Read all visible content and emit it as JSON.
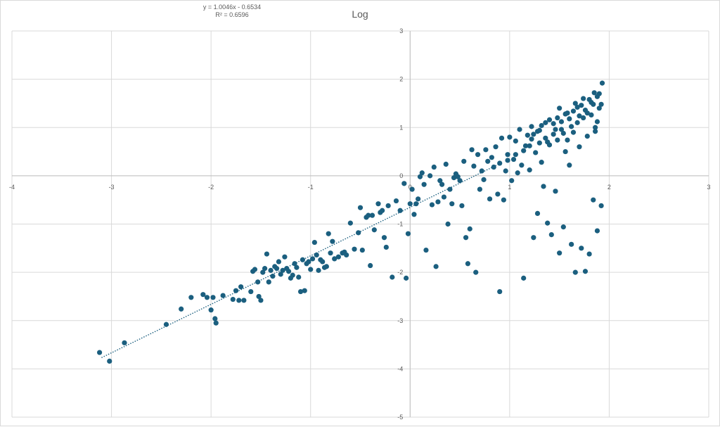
{
  "chart_data": {
    "type": "scatter",
    "title": "Log",
    "xlabel": "",
    "ylabel": "",
    "xlim": [
      -4,
      3
    ],
    "ylim": [
      -5,
      3
    ],
    "x_ticks": [
      -4,
      -3,
      -2,
      -1,
      0,
      1,
      2,
      3
    ],
    "y_ticks": [
      -5,
      -4,
      -3,
      -2,
      -1,
      0,
      1,
      2,
      3
    ],
    "x_tick_labels": [
      "-4",
      "-3",
      "-2",
      "-1",
      "0",
      "1",
      "2",
      "3"
    ],
    "y_tick_labels": [
      "-5",
      "-4",
      "-3",
      "-2",
      "-1",
      "0",
      "1",
      "2",
      "3"
    ],
    "grid": true,
    "marker_color": "#1b5f7f",
    "trendline": {
      "type": "linear",
      "slope": 1.0046,
      "intercept": -0.6534,
      "r_squared": 0.6596,
      "x_range": [
        -3.1,
        0.9
      ],
      "color": "#1b5f7f",
      "equation_label": "y = 1.0046x - 0.6534",
      "r2_label": "R² = 0.6596"
    },
    "points": [
      [
        -3.12,
        -3.66
      ],
      [
        -3.02,
        -3.84
      ],
      [
        -2.87,
        -3.46
      ],
      [
        -2.45,
        -3.08
      ],
      [
        -2.3,
        -2.76
      ],
      [
        -2.2,
        -2.52
      ],
      [
        -2.08,
        -2.46
      ],
      [
        -2.04,
        -2.52
      ],
      [
        -2.0,
        -2.78
      ],
      [
        -1.98,
        -2.52
      ],
      [
        -1.96,
        -2.96
      ],
      [
        -1.95,
        -3.05
      ],
      [
        -1.88,
        -2.48
      ],
      [
        -1.78,
        -2.56
      ],
      [
        -1.75,
        -2.38
      ],
      [
        -1.72,
        -2.58
      ],
      [
        -1.7,
        -2.3
      ],
      [
        -1.67,
        -2.58
      ],
      [
        -1.6,
        -2.4
      ],
      [
        -1.58,
        -1.98
      ],
      [
        -1.56,
        -1.94
      ],
      [
        -1.53,
        -2.2
      ],
      [
        -1.52,
        -2.5
      ],
      [
        -1.5,
        -2.58
      ],
      [
        -1.48,
        -2.0
      ],
      [
        -1.46,
        -1.92
      ],
      [
        -1.44,
        -1.62
      ],
      [
        -1.42,
        -2.2
      ],
      [
        -1.4,
        -1.96
      ],
      [
        -1.38,
        -2.08
      ],
      [
        -1.36,
        -1.88
      ],
      [
        -1.34,
        -1.92
      ],
      [
        -1.32,
        -1.78
      ],
      [
        -1.3,
        -2.04
      ],
      [
        -1.28,
        -1.96
      ],
      [
        -1.26,
        -1.68
      ],
      [
        -1.24,
        -1.92
      ],
      [
        -1.22,
        -1.98
      ],
      [
        -1.2,
        -2.12
      ],
      [
        -1.18,
        -2.06
      ],
      [
        -1.16,
        -1.82
      ],
      [
        -1.14,
        -1.9
      ],
      [
        -1.12,
        -2.1
      ],
      [
        -1.1,
        -2.4
      ],
      [
        -1.08,
        -1.74
      ],
      [
        -1.06,
        -2.38
      ],
      [
        -1.04,
        -1.82
      ],
      [
        -1.02,
        -1.78
      ],
      [
        -1.0,
        -1.94
      ],
      [
        -0.98,
        -1.72
      ],
      [
        -0.96,
        -1.38
      ],
      [
        -0.94,
        -1.64
      ],
      [
        -0.92,
        -1.96
      ],
      [
        -0.9,
        -1.74
      ],
      [
        -0.88,
        -1.78
      ],
      [
        -0.86,
        -1.9
      ],
      [
        -0.84,
        -1.88
      ],
      [
        -0.82,
        -1.2
      ],
      [
        -0.8,
        -1.6
      ],
      [
        -0.78,
        -1.36
      ],
      [
        -0.76,
        -1.72
      ],
      [
        -0.72,
        -1.68
      ],
      [
        -0.68,
        -1.6
      ],
      [
        -0.66,
        -1.58
      ],
      [
        -0.64,
        -1.64
      ],
      [
        -0.6,
        -0.98
      ],
      [
        -0.56,
        -1.52
      ],
      [
        -0.52,
        -1.18
      ],
      [
        -0.5,
        -0.66
      ],
      [
        -0.48,
        -1.54
      ],
      [
        -0.44,
        -0.86
      ],
      [
        -0.42,
        -0.82
      ],
      [
        -0.4,
        -1.86
      ],
      [
        -0.38,
        -0.82
      ],
      [
        -0.36,
        -1.12
      ],
      [
        -0.32,
        -0.58
      ],
      [
        -0.3,
        -0.76
      ],
      [
        -0.28,
        -0.72
      ],
      [
        -0.26,
        -1.28
      ],
      [
        -0.24,
        -1.48
      ],
      [
        -0.22,
        -0.62
      ],
      [
        -0.18,
        -2.1
      ],
      [
        -0.14,
        -0.52
      ],
      [
        -0.1,
        -0.72
      ],
      [
        -0.06,
        -0.16
      ],
      [
        -0.04,
        -2.12
      ],
      [
        -0.02,
        -1.2
      ],
      [
        0.0,
        -0.58
      ],
      [
        0.02,
        -0.28
      ],
      [
        0.04,
        -0.8
      ],
      [
        0.06,
        -0.58
      ],
      [
        0.08,
        -0.48
      ],
      [
        0.1,
        -0.02
      ],
      [
        0.12,
        0.06
      ],
      [
        0.14,
        -0.18
      ],
      [
        0.16,
        -1.54
      ],
      [
        0.2,
        0.0
      ],
      [
        0.22,
        -0.6
      ],
      [
        0.24,
        0.18
      ],
      [
        0.26,
        -1.88
      ],
      [
        0.28,
        -0.54
      ],
      [
        0.3,
        -0.1
      ],
      [
        0.32,
        -0.18
      ],
      [
        0.34,
        -0.44
      ],
      [
        0.36,
        0.24
      ],
      [
        0.38,
        -1.0
      ],
      [
        0.4,
        -0.28
      ],
      [
        0.42,
        -0.58
      ],
      [
        0.44,
        -0.04
      ],
      [
        0.46,
        0.04
      ],
      [
        0.48,
        -0.02
      ],
      [
        0.5,
        -0.1
      ],
      [
        0.52,
        -0.62
      ],
      [
        0.54,
        0.3
      ],
      [
        0.56,
        -1.28
      ],
      [
        0.58,
        -1.82
      ],
      [
        0.6,
        -1.1
      ],
      [
        0.62,
        0.54
      ],
      [
        0.64,
        0.2
      ],
      [
        0.66,
        -2.0
      ],
      [
        0.68,
        0.44
      ],
      [
        0.7,
        -0.28
      ],
      [
        0.72,
        0.1
      ],
      [
        0.74,
        -0.08
      ],
      [
        0.76,
        0.54
      ],
      [
        0.78,
        0.3
      ],
      [
        0.8,
        -0.48
      ],
      [
        0.82,
        0.38
      ],
      [
        0.84,
        0.18
      ],
      [
        0.86,
        0.6
      ],
      [
        0.88,
        -0.38
      ],
      [
        0.9,
        -2.4
      ],
      [
        0.92,
        0.78
      ],
      [
        0.94,
        -0.5
      ],
      [
        0.96,
        0.1
      ],
      [
        0.98,
        0.44
      ],
      [
        1.0,
        0.8
      ],
      [
        1.02,
        -0.1
      ],
      [
        1.04,
        0.34
      ],
      [
        1.06,
        0.72
      ],
      [
        1.08,
        0.06
      ],
      [
        1.1,
        0.96
      ],
      [
        1.12,
        0.22
      ],
      [
        1.14,
        -2.12
      ],
      [
        1.16,
        0.62
      ],
      [
        1.18,
        0.84
      ],
      [
        1.2,
        0.12
      ],
      [
        1.22,
        1.02
      ],
      [
        1.24,
        -1.28
      ],
      [
        1.26,
        0.48
      ],
      [
        1.28,
        -0.78
      ],
      [
        1.3,
        0.94
      ],
      [
        1.32,
        0.28
      ],
      [
        1.34,
        -0.22
      ],
      [
        1.36,
        1.1
      ],
      [
        1.38,
        -0.98
      ],
      [
        1.4,
        0.64
      ],
      [
        1.42,
        -1.22
      ],
      [
        1.44,
        0.86
      ],
      [
        1.46,
        -0.32
      ],
      [
        1.48,
        0.74
      ],
      [
        1.5,
        -1.6
      ],
      [
        1.52,
        1.12
      ],
      [
        1.54,
        -1.06
      ],
      [
        1.56,
        0.5
      ],
      [
        1.58,
        1.3
      ],
      [
        1.6,
        0.22
      ],
      [
        1.62,
        -1.42
      ],
      [
        1.64,
        0.9
      ],
      [
        1.66,
        -2.0
      ],
      [
        1.68,
        1.42
      ],
      [
        1.7,
        0.6
      ],
      [
        1.72,
        -1.5
      ],
      [
        1.74,
        1.2
      ],
      [
        1.76,
        -1.98
      ],
      [
        1.78,
        0.82
      ],
      [
        1.8,
        -1.62
      ],
      [
        1.82,
        1.52
      ],
      [
        1.84,
        -0.5
      ],
      [
        1.86,
        1.0
      ],
      [
        1.88,
        -1.14
      ],
      [
        1.9,
        1.7
      ],
      [
        1.92,
        -0.62
      ],
      [
        1.93,
        1.92
      ],
      [
        1.2,
        0.62
      ],
      [
        1.24,
        0.86
      ],
      [
        1.28,
        0.92
      ],
      [
        1.32,
        1.04
      ],
      [
        1.36,
        0.78
      ],
      [
        1.4,
        1.16
      ],
      [
        1.44,
        1.08
      ],
      [
        1.48,
        1.2
      ],
      [
        1.52,
        0.96
      ],
      [
        1.56,
        1.28
      ],
      [
        1.6,
        1.18
      ],
      [
        1.64,
        1.34
      ],
      [
        1.68,
        1.1
      ],
      [
        1.72,
        1.46
      ],
      [
        1.76,
        1.36
      ],
      [
        1.8,
        1.58
      ],
      [
        1.84,
        1.48
      ],
      [
        1.88,
        1.64
      ],
      [
        1.9,
        1.4
      ],
      [
        1.85,
        1.72
      ],
      [
        1.78,
        1.3
      ],
      [
        1.7,
        1.24
      ],
      [
        1.62,
        1.02
      ],
      [
        1.54,
        0.88
      ],
      [
        1.46,
        0.96
      ],
      [
        1.38,
        0.7
      ],
      [
        1.3,
        0.68
      ],
      [
        1.22,
        0.76
      ],
      [
        1.14,
        0.52
      ],
      [
        1.06,
        0.44
      ],
      [
        0.98,
        0.32
      ],
      [
        0.9,
        0.26
      ],
      [
        1.66,
        1.5
      ],
      [
        1.74,
        1.6
      ],
      [
        1.82,
        1.26
      ],
      [
        1.88,
        1.12
      ],
      [
        1.92,
        1.48
      ],
      [
        1.86,
        0.92
      ],
      [
        1.58,
        0.74
      ],
      [
        1.5,
        1.4
      ]
    ]
  }
}
